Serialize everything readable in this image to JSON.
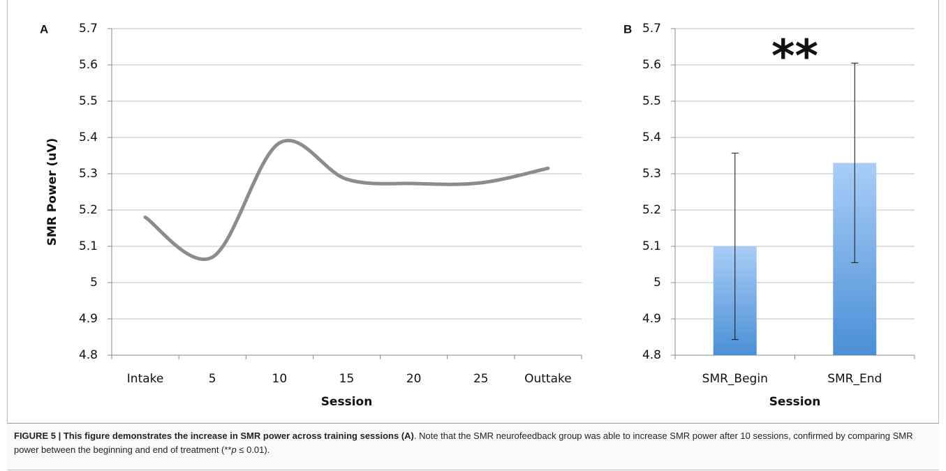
{
  "chart_data": [
    {
      "type": "line",
      "panel_label": "A",
      "y_label": "SMR Power (uV)",
      "x_label": "Session",
      "categories": [
        "Intake",
        "5",
        "10",
        "15",
        "20",
        "25",
        "Outtake"
      ],
      "values": [
        5.18,
        5.07,
        5.385,
        5.285,
        5.273,
        5.275,
        5.315
      ],
      "color": "#8c8c8c",
      "ylim": [
        4.8,
        5.7
      ],
      "yticks": [
        4.8,
        4.9,
        5,
        5.1,
        5.2,
        5.3,
        5.4,
        5.5,
        5.6,
        5.7
      ],
      "grid": true
    },
    {
      "type": "bar",
      "panel_label": "B",
      "x_label": "Session",
      "annotation": "**",
      "categories": [
        "SMR_Begin",
        "SMR_End"
      ],
      "values": [
        5.1,
        5.33
      ],
      "errors": [
        0.257,
        0.275
      ],
      "color": "#5b9bd5",
      "ylim": [
        4.8,
        5.7
      ],
      "yticks": [
        4.8,
        4.9,
        5,
        5.1,
        5.2,
        5.3,
        5.4,
        5.5,
        5.6,
        5.7
      ],
      "grid": true
    }
  ],
  "caption": {
    "bold": "FIGURE 5 | This figure demonstrates the increase in SMR power across training sessions (A)",
    "text": ". Note that the SMR neurofeedback group was able to increase SMR power after 10 sessions, confirmed by comparing SMR power between the beginning and end of treatment (**",
    "italic": "p",
    "text_after": " ≤ 0.01)."
  }
}
